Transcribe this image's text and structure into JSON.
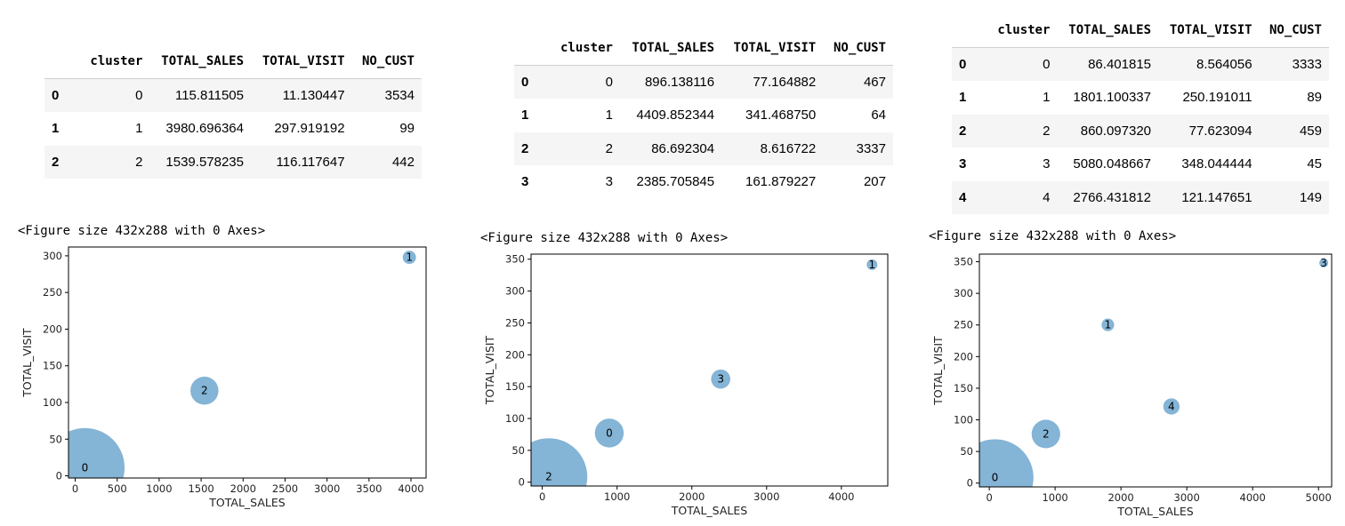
{
  "chart_data": [
    {
      "type": "scatter",
      "figure_caption": "<Figure size 432x288 with 0 Axes>",
      "table": {
        "columns": [
          "cluster",
          "TOTAL_SALES",
          "TOTAL_VISIT",
          "NO_CUST"
        ],
        "rows": [
          {
            "index": "0",
            "cells": [
              "0",
              "115.811505",
              "11.130447",
              "3534"
            ]
          },
          {
            "index": "1",
            "cells": [
              "1",
              "3980.696364",
              "297.919192",
              "99"
            ]
          },
          {
            "index": "2",
            "cells": [
              "2",
              "1539.578235",
              "116.117647",
              "442"
            ]
          }
        ]
      },
      "points": [
        {
          "label": "0",
          "x": 115.811505,
          "y": 11.130447,
          "size": 3534
        },
        {
          "label": "1",
          "x": 3980.696364,
          "y": 297.919192,
          "size": 99
        },
        {
          "label": "2",
          "x": 1539.578235,
          "y": 116.117647,
          "size": 442
        }
      ],
      "xlabel": "TOTAL_SALES",
      "ylabel": "TOTAL_VISIT",
      "xlim": [
        -80,
        4180
      ],
      "ylim": [
        -3,
        312
      ],
      "xticks": [
        0,
        500,
        1000,
        1500,
        2000,
        2500,
        3000,
        3500,
        4000
      ],
      "yticks": [
        0,
        50,
        100,
        150,
        200,
        250,
        300
      ],
      "marker_color": "#1f77b4",
      "grid": false
    },
    {
      "type": "scatter",
      "figure_caption": "<Figure size 432x288 with 0 Axes>",
      "table": {
        "columns": [
          "cluster",
          "TOTAL_SALES",
          "TOTAL_VISIT",
          "NO_CUST"
        ],
        "rows": [
          {
            "index": "0",
            "cells": [
              "0",
              "896.138116",
              "77.164882",
              "467"
            ]
          },
          {
            "index": "1",
            "cells": [
              "1",
              "4409.852344",
              "341.468750",
              "64"
            ]
          },
          {
            "index": "2",
            "cells": [
              "2",
              "86.692304",
              "8.616722",
              "3337"
            ]
          },
          {
            "index": "3",
            "cells": [
              "3",
              "2385.705845",
              "161.879227",
              "207"
            ]
          }
        ]
      },
      "points": [
        {
          "label": "0",
          "x": 896.138116,
          "y": 77.164882,
          "size": 467
        },
        {
          "label": "1",
          "x": 4409.852344,
          "y": 341.46875,
          "size": 64
        },
        {
          "label": "2",
          "x": 86.692304,
          "y": 8.616722,
          "size": 3337
        },
        {
          "label": "3",
          "x": 2385.705845,
          "y": 161.879227,
          "size": 207
        }
      ],
      "xlabel": "TOTAL_SALES",
      "ylabel": "TOTAL_VISIT",
      "xlim": [
        -150,
        4620
      ],
      "ylim": [
        -6,
        358
      ],
      "xticks": [
        0,
        1000,
        2000,
        3000,
        4000
      ],
      "yticks": [
        0,
        50,
        100,
        150,
        200,
        250,
        300,
        350
      ],
      "marker_color": "#1f77b4",
      "grid": false
    },
    {
      "type": "scatter",
      "figure_caption": "<Figure size 432x288 with 0 Axes>",
      "table": {
        "columns": [
          "cluster",
          "TOTAL_SALES",
          "TOTAL_VISIT",
          "NO_CUST"
        ],
        "rows": [
          {
            "index": "0",
            "cells": [
              "0",
              "86.401815",
              "8.564056",
              "3333"
            ]
          },
          {
            "index": "1",
            "cells": [
              "1",
              "1801.100337",
              "250.191011",
              "89"
            ]
          },
          {
            "index": "2",
            "cells": [
              "2",
              "860.097320",
              "77.623094",
              "459"
            ]
          },
          {
            "index": "3",
            "cells": [
              "3",
              "5080.048667",
              "348.044444",
              "45"
            ]
          },
          {
            "index": "4",
            "cells": [
              "4",
              "2766.431812",
              "121.147651",
              "149"
            ]
          }
        ]
      },
      "points": [
        {
          "label": "0",
          "x": 86.401815,
          "y": 8.564056,
          "size": 3333
        },
        {
          "label": "1",
          "x": 1801.100337,
          "y": 250.191011,
          "size": 89
        },
        {
          "label": "2",
          "x": 860.09732,
          "y": 77.623094,
          "size": 459
        },
        {
          "label": "3",
          "x": 5080.048667,
          "y": 348.044444,
          "size": 45
        },
        {
          "label": "4",
          "x": 2766.431812,
          "y": 121.147651,
          "size": 149
        }
      ],
      "xlabel": "TOTAL_SALES",
      "ylabel": "TOTAL_VISIT",
      "xlim": [
        -150,
        5200
      ],
      "ylim": [
        -6,
        362
      ],
      "xticks": [
        0,
        1000,
        2000,
        3000,
        4000,
        5000
      ],
      "yticks": [
        0,
        50,
        100,
        150,
        200,
        250,
        300,
        350
      ],
      "marker_color": "#1f77b4",
      "grid": false
    }
  ]
}
